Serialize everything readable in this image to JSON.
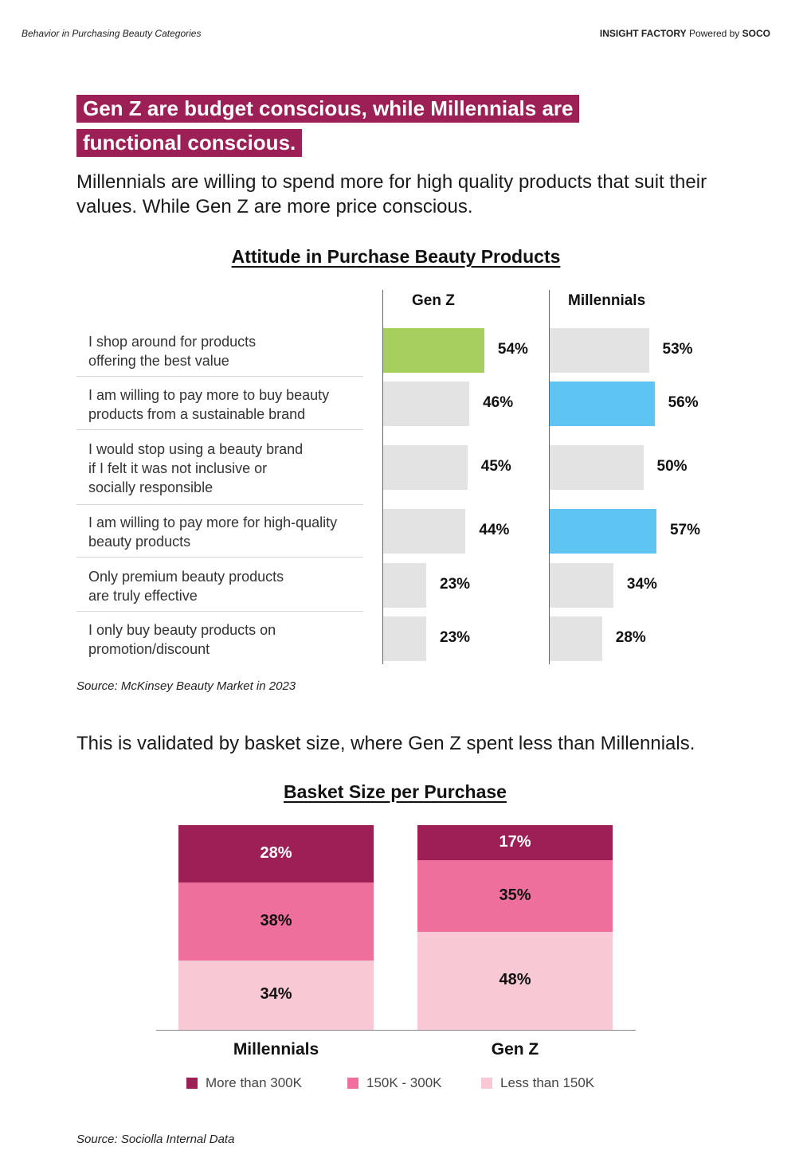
{
  "header": {
    "left_text": "Behavior in Purchasing Beauty Categories",
    "right_brand": "INSIGHT FACTORY",
    "right_powered": "Powered by",
    "right_company": "SOCO"
  },
  "headline": {
    "line1": "Gen Z are budget conscious, while Millennials are",
    "line2": "functional conscious."
  },
  "subtext": "Millennials are willing to spend more for high quality products that suit their values. While Gen Z are more price conscious.",
  "validation_text": "This is validated by basket size, where Gen Z spent less than Millennials.",
  "colors": {
    "accent": "#9c1f56",
    "genz_highlight": "#a6cf5d",
    "millennial_highlight": "#5ec5f2",
    "bar_default": "#e3e3e3",
    "seg_dark": "#9c1f56",
    "seg_mid": "#ef6f9c",
    "seg_light": "#f8c8d4"
  },
  "chart_data": [
    {
      "type": "bar",
      "title": "Attitude in Purchase Beauty Products",
      "orientation": "horizontal",
      "categories": [
        "I shop around for products offering the best value",
        "I am willing to pay more to buy beauty products from a sustainable brand",
        "I would stop using a beauty brand if I felt it was not inclusive or socially responsible",
        "I am willing to pay more for high-quality beauty products",
        "Only premium beauty products are truly effective",
        "I only buy beauty products on promotion/discount"
      ],
      "category_lines": [
        [
          "I shop around for products",
          "offering the best value"
        ],
        [
          "I am willing to pay more to buy beauty",
          "products from a sustainable brand"
        ],
        [
          "I would stop using a beauty brand",
          "if I felt it was not inclusive or",
          "socially responsible"
        ],
        [
          "I am willing to pay more for high-quality",
          "beauty products"
        ],
        [
          "Only premium beauty products",
          "are truly effective"
        ],
        [
          "I only buy beauty products on",
          "promotion/discount"
        ]
      ],
      "series": [
        {
          "name": "Gen Z",
          "values": [
            54,
            46,
            45,
            44,
            23,
            23
          ],
          "labels": [
            "54%",
            "46%",
            "45%",
            "44%",
            "23%",
            "23%"
          ],
          "highlight": [
            true,
            false,
            false,
            false,
            false,
            false
          ]
        },
        {
          "name": "Millennials",
          "values": [
            53,
            56,
            50,
            57,
            34,
            28
          ],
          "labels": [
            "53%",
            "56%",
            "50%",
            "57%",
            "34%",
            "28%"
          ],
          "highlight": [
            false,
            true,
            false,
            true,
            false,
            false
          ]
        }
      ],
      "unit": "%",
      "source": "Source: McKinsey Beauty Market in 2023"
    },
    {
      "type": "bar",
      "stacked": true,
      "title": "Basket Size per Purchase",
      "categories": [
        "Millennials",
        "Gen Z"
      ],
      "series": [
        {
          "name": "More than 300K",
          "values": [
            28,
            17
          ],
          "labels": [
            "28%",
            "17%"
          ]
        },
        {
          "name": "150K - 300K",
          "values": [
            38,
            35
          ],
          "labels": [
            "38%",
            "35%"
          ]
        },
        {
          "name": "Less than 150K",
          "values": [
            34,
            48
          ],
          "labels": [
            "34%",
            "48%"
          ]
        }
      ],
      "legend": "bottom",
      "unit": "%",
      "source": "Source: Sociolla Internal Data"
    }
  ]
}
